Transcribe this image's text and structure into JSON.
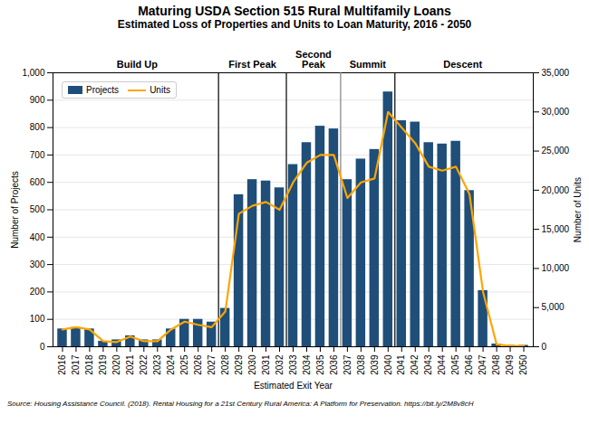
{
  "chart_data": {
    "type": "bar",
    "title": "Maturing USDA Section 515 Rural Multifamily Loans",
    "subtitle": "Estimated Loss of Properties and Units to Loan Maturity, 2016 - 2050",
    "xlabel": "Estimated Exit Year",
    "ylabel": "Number of Projects",
    "y2label": "Number of Units",
    "source": "Source: Housing Assistance Council. (2018). Rental Housing for a 21st Century Rural America: A Platform for Preservation.  https://bit.ly/2M8v8cH",
    "x": [
      2016,
      2017,
      2018,
      2019,
      2020,
      2021,
      2022,
      2023,
      2024,
      2025,
      2026,
      2027,
      2028,
      2029,
      2030,
      2031,
      2032,
      2033,
      2034,
      2035,
      2036,
      2037,
      2038,
      2039,
      2040,
      2041,
      2042,
      2043,
      2044,
      2045,
      2046,
      2047,
      2048,
      2049,
      2050
    ],
    "series": [
      {
        "name": "Projects",
        "type": "bar",
        "color": "#1F4E79",
        "values": [
          65,
          70,
          65,
          20,
          25,
          40,
          25,
          25,
          65,
          100,
          100,
          90,
          140,
          555,
          610,
          605,
          580,
          665,
          745,
          805,
          795,
          610,
          685,
          720,
          930,
          825,
          820,
          745,
          740,
          750,
          570,
          205,
          10,
          5,
          5
        ]
      },
      {
        "name": "Units",
        "type": "line",
        "color": "#FFA500",
        "axis": "y2",
        "values": [
          2200,
          2500,
          2200,
          700,
          600,
          1300,
          700,
          700,
          2200,
          3200,
          2800,
          2500,
          4500,
          17000,
          18000,
          18500,
          17500,
          21000,
          23500,
          24500,
          24500,
          19000,
          21000,
          21500,
          30000,
          28000,
          26000,
          23000,
          22500,
          23000,
          19500,
          7000,
          300,
          100,
          100
        ]
      }
    ],
    "xlim": [
      2015.3,
      2050.7
    ],
    "xticks": [
      2016,
      2017,
      2018,
      2019,
      2020,
      2021,
      2022,
      2023,
      2024,
      2025,
      2026,
      2027,
      2028,
      2029,
      2030,
      2031,
      2032,
      2033,
      2034,
      2035,
      2036,
      2037,
      2038,
      2039,
      2040,
      2041,
      2042,
      2043,
      2044,
      2045,
      2046,
      2047,
      2048,
      2049,
      2050
    ],
    "ylim": [
      0,
      1000
    ],
    "yticks": [
      0,
      100,
      200,
      300,
      400,
      500,
      600,
      700,
      800,
      900,
      {
        "value": 1000,
        "label": "1,000"
      }
    ],
    "y2lim": [
      0,
      35000
    ],
    "y2ticks": [
      0,
      {
        "value": 5000,
        "label": "5,000"
      },
      {
        "value": 10000,
        "label": "10,000"
      },
      {
        "value": 15000,
        "label": "15,000"
      },
      {
        "value": 20000,
        "label": "20,000"
      },
      {
        "value": 25000,
        "label": "25,000"
      },
      {
        "value": 30000,
        "label": "30,000"
      },
      {
        "value": 35000,
        "label": "35,000"
      }
    ],
    "grid": true,
    "legend": "upper left",
    "phases": [
      {
        "label": "Build Up",
        "x": 2021.5,
        "line_x": 2027.5,
        "line_color": "black"
      },
      {
        "label": "First Peak",
        "x": 2030.0,
        "line_x": 2032.5,
        "line_color": "black"
      },
      {
        "label": "Second\nPeak",
        "x": 2034.5,
        "line_x": 2036.5,
        "line_color": "gray"
      },
      {
        "label": "Summit",
        "x": 2038.5,
        "line_x": 2040.5,
        "line_color": "black"
      },
      {
        "label": "Descent",
        "x": 2045.5
      }
    ]
  }
}
